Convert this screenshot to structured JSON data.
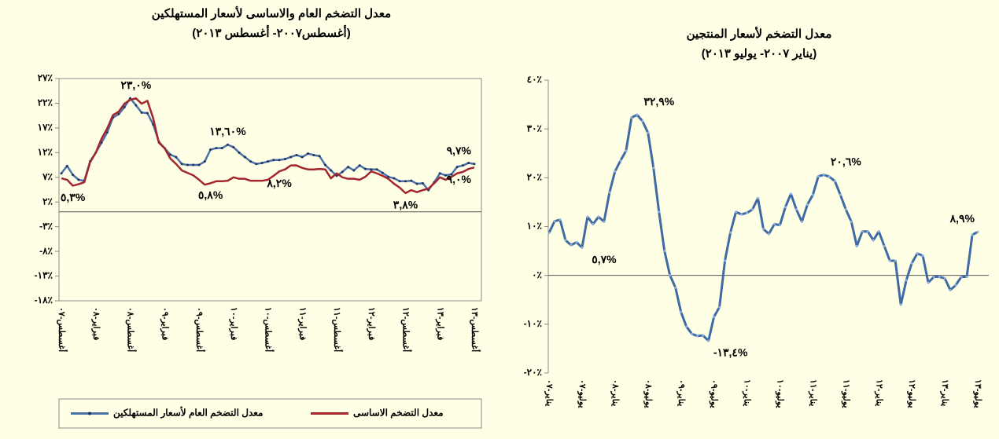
{
  "chart_data": [
    {
      "type": "line",
      "title": "معدل التضخم العام والاساسى لأسعار المستهلكين",
      "subtitle": "(أغسطس٢٠٠٧- أغسطس ٢٠١٣)",
      "categories": [
        "أغسطس-٠٧",
        null,
        null,
        null,
        null,
        null,
        "فبراير-٠٨",
        null,
        null,
        null,
        null,
        null,
        "أغسطس-٠٨",
        null,
        null,
        null,
        null,
        null,
        "فبراير-٠٩",
        null,
        null,
        null,
        null,
        null,
        "أغسطس-٠٩",
        null,
        null,
        null,
        null,
        null,
        "فبراير-١٠",
        null,
        null,
        null,
        null,
        null,
        "أغسطس-١٠",
        null,
        null,
        null,
        null,
        null,
        "فبراير-١١",
        null,
        null,
        null,
        null,
        null,
        "أغسطس-١١",
        null,
        null,
        null,
        null,
        null,
        "فبراير-١٢",
        null,
        null,
        null,
        null,
        null,
        "أغسطس-١٢",
        null,
        null,
        null,
        null,
        null,
        "فبراير-١٣",
        null,
        null,
        null,
        null,
        null,
        "أغسطس-١٣"
      ],
      "series": [
        {
          "name": "معدل التضخم العام لأسعار المستهلكين",
          "color": "#4b72a8",
          "marker_color": "#1f3560",
          "values": [
            7.8,
            9.3,
            7.5,
            6.5,
            6.3,
            10.2,
            12.0,
            14.0,
            16.1,
            19.1,
            19.8,
            21.2,
            23.0,
            21.6,
            20.1,
            20.0,
            17.7,
            14.2,
            12.9,
            11.6,
            11.1,
            9.7,
            9.5,
            9.5,
            9.5,
            10.2,
            12.6,
            12.9,
            12.9,
            13.6,
            13.1,
            12.0,
            11.1,
            10.2,
            9.7,
            9.9,
            10.2,
            10.5,
            10.5,
            10.7,
            11.1,
            11.5,
            11.1,
            11.8,
            11.5,
            11.3,
            9.5,
            8.4,
            7.3,
            8.1,
            9.1,
            8.4,
            9.4,
            8.7,
            8.6,
            8.6,
            7.9,
            7.1,
            6.8,
            6.2,
            6.2,
            6.3,
            5.7,
            5.8,
            4.4,
            6.0,
            7.8,
            7.4,
            7.6,
            9.1,
            9.4,
            9.9,
            9.7
          ],
          "value_labels": [
            null,
            null,
            null,
            null,
            null,
            null,
            null,
            null,
            null,
            null,
            null,
            null,
            null,
            null,
            null,
            null,
            null,
            null,
            null,
            null,
            null,
            null,
            null,
            null,
            null,
            null,
            null,
            null,
            null,
            "١٣,٦٠%",
            null,
            null,
            null,
            null,
            null,
            null,
            null,
            null,
            null,
            null,
            null,
            null,
            null,
            null,
            null,
            null,
            null,
            null,
            null,
            null,
            null,
            null,
            null,
            null,
            null,
            null,
            null,
            null,
            null,
            null,
            null,
            null,
            null,
            null,
            null,
            null,
            null,
            null,
            null,
            null,
            null,
            null,
            "٩,٧%"
          ]
        },
        {
          "name": "معدل التضخم الاساسى",
          "color": "#a3262c",
          "values": [
            6.8,
            6.5,
            5.3,
            5.6,
            6.0,
            10.0,
            12.0,
            14.8,
            16.9,
            19.6,
            20.3,
            21.9,
            22.7,
            23.0,
            21.9,
            22.5,
            19.0,
            14.0,
            12.9,
            10.8,
            9.7,
            8.4,
            7.9,
            7.4,
            6.5,
            5.5,
            5.8,
            6.2,
            6.2,
            6.3,
            7.0,
            6.7,
            6.7,
            6.3,
            6.3,
            6.3,
            6.5,
            7.3,
            8.2,
            8.6,
            9.4,
            9.4,
            8.9,
            8.6,
            8.6,
            8.7,
            8.6,
            6.8,
            7.8,
            7.0,
            6.7,
            6.7,
            6.5,
            7.1,
            8.2,
            7.8,
            7.3,
            6.7,
            5.7,
            4.9,
            3.8,
            4.4,
            4.0,
            4.4,
            4.7,
            5.8,
            7.0,
            6.5,
            7.1,
            7.8,
            8.1,
            8.7,
            9.0
          ],
          "value_labels": [
            null,
            null,
            "٥,٣%",
            null,
            null,
            null,
            null,
            null,
            null,
            null,
            null,
            null,
            null,
            "٢٣,٠%",
            null,
            null,
            null,
            null,
            null,
            null,
            null,
            null,
            null,
            null,
            null,
            null,
            "٥,٨%",
            null,
            null,
            null,
            null,
            null,
            null,
            null,
            null,
            null,
            null,
            null,
            "٨,٢%",
            null,
            null,
            null,
            null,
            null,
            null,
            null,
            null,
            null,
            null,
            null,
            null,
            null,
            null,
            null,
            null,
            null,
            null,
            null,
            null,
            null,
            "٣,٨%",
            null,
            null,
            null,
            null,
            null,
            null,
            null,
            null,
            null,
            null,
            null,
            "٩,٠%"
          ]
        }
      ],
      "ylim": [
        -18,
        27
      ],
      "yticks": [
        {
          "value": 27,
          "label": "٢٧٪"
        },
        {
          "value": 22,
          "label": "٢٢٪"
        },
        {
          "value": 17,
          "label": "١٧٪"
        },
        {
          "value": 12,
          "label": "١٢٪"
        },
        {
          "value": 7,
          "label": "٧٪"
        },
        {
          "value": 2,
          "label": "٢٪"
        },
        {
          "value": -3,
          "label": "-٣٪"
        },
        {
          "value": -8,
          "label": "-٨٪"
        },
        {
          "value": -13,
          "label": "-١٣٪"
        },
        {
          "value": -18,
          "label": "-١٨٪"
        }
      ],
      "plot_border": true,
      "legend": "bottom"
    },
    {
      "type": "line",
      "title": "معدل التضخم لأسعار المنتجين",
      "subtitle": "(يناير ٢٠٠٧- يوليو ٢٠١٣)",
      "categories": [
        "يناير-٠٧",
        null,
        null,
        null,
        null,
        null,
        "يوليو-٠٧",
        null,
        null,
        null,
        null,
        null,
        "يناير-٠٨",
        null,
        null,
        null,
        null,
        null,
        "يوليو-٠٨",
        null,
        null,
        null,
        null,
        null,
        "يناير-٠٩",
        null,
        null,
        null,
        null,
        null,
        "يوليو-٠٩",
        null,
        null,
        null,
        null,
        null,
        "يناير-١٠",
        null,
        null,
        null,
        null,
        null,
        "يوليو-١٠",
        null,
        null,
        null,
        null,
        null,
        "يناير-١١",
        null,
        null,
        null,
        null,
        null,
        "يوليو-١١",
        null,
        null,
        null,
        null,
        null,
        "يناير-١٢",
        null,
        null,
        null,
        null,
        null,
        "يوليو-١٢",
        null,
        null,
        null,
        null,
        null,
        "يناير-١٣",
        null,
        null,
        null,
        null,
        null,
        "يوليو-١٣"
      ],
      "series": [
        {
          "color": "#3f6aa3",
          "marker_color": "#8fb0dc",
          "values": [
            8.7,
            11.1,
            11.4,
            7.2,
            6.2,
            6.8,
            5.7,
            12.0,
            10.5,
            12.0,
            11.0,
            17.0,
            21.3,
            23.5,
            25.5,
            32.3,
            32.9,
            31.6,
            29.2,
            22.0,
            13.0,
            5.0,
            0,
            -2.5,
            -7.5,
            -10.5,
            -12.0,
            -12.4,
            -12.3,
            -13.4,
            -8.5,
            -6.5,
            3.0,
            8.8,
            13.0,
            12.5,
            12.8,
            13.5,
            15.8,
            9.5,
            8.5,
            10.5,
            10.3,
            14.0,
            16.7,
            13.5,
            11.0,
            14.5,
            16.5,
            20.3,
            20.6,
            20.2,
            19.3,
            16.5,
            13.5,
            11.0,
            6.0,
            9.0,
            9.0,
            7.2,
            9.0,
            6.0,
            3.0,
            3.0,
            -6.0,
            -1.0,
            2.5,
            4.5,
            4.0,
            -1.5,
            -0.3,
            -0.3,
            -0.6,
            -3.0,
            -2.0,
            -0.3,
            -0.3,
            8.3,
            8.9
          ],
          "value_labels": [
            null,
            null,
            null,
            null,
            null,
            null,
            "٥,٧%",
            null,
            null,
            null,
            null,
            null,
            null,
            null,
            null,
            null,
            "٣٢,٩%",
            null,
            null,
            null,
            null,
            null,
            null,
            null,
            null,
            null,
            null,
            null,
            null,
            "-١٣,٤%",
            null,
            null,
            null,
            null,
            null,
            null,
            null,
            null,
            null,
            null,
            null,
            null,
            null,
            null,
            null,
            null,
            null,
            null,
            null,
            null,
            "٢٠,٦%",
            null,
            null,
            null,
            null,
            null,
            null,
            null,
            null,
            null,
            null,
            null,
            null,
            null,
            null,
            null,
            null,
            null,
            null,
            null,
            null,
            null,
            null,
            null,
            null,
            null,
            null,
            null,
            "٨,٩%"
          ]
        }
      ],
      "ylim": [
        -20,
        40
      ],
      "yticks": [
        {
          "value": 40,
          "label": "٤٠٪"
        },
        {
          "value": 30,
          "label": "٣٠٪"
        },
        {
          "value": 20,
          "label": "٢٠٪"
        },
        {
          "value": 10,
          "label": "١٠٪"
        },
        {
          "value": 0,
          "label": "٠٪"
        },
        {
          "value": -10,
          "label": "-١٠٪"
        },
        {
          "value": -20,
          "label": "-٢٠٪"
        }
      ]
    }
  ]
}
